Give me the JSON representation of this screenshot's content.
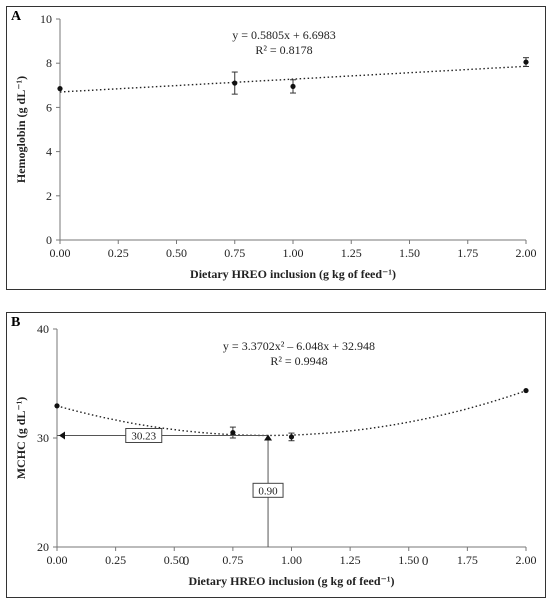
{
  "chart_data": [
    {
      "panel": "A",
      "type": "scatter",
      "equation": "y = 0.5805x + 6.6983",
      "r2": "R² = 0.8178",
      "xlabel": "Dietary HREO inclusion (g kg of feed⁻¹)",
      "ylabel": "Hemoglobin (g dL⁻¹)",
      "xlim": [
        0,
        2
      ],
      "ylim": [
        0,
        10
      ],
      "x_ticks": [
        "0.00",
        "0.25",
        "0.50",
        "0.75",
        "1.00",
        "1.25",
        "1.50",
        "1.75",
        "2.00"
      ],
      "y_ticks": [
        "0",
        "2",
        "4",
        "6",
        "8",
        "10"
      ],
      "points": [
        {
          "x": 0.0,
          "y": 6.85,
          "err": 0
        },
        {
          "x": 0.75,
          "y": 7.1,
          "err": 0.5
        },
        {
          "x": 1.0,
          "y": 6.95,
          "err": 0.3
        },
        {
          "x": 2.0,
          "y": 8.05,
          "err": 0.2
        }
      ],
      "trendline": {
        "kind": "linear",
        "a": 0.5805,
        "b": 6.6983
      }
    },
    {
      "panel": "B",
      "type": "scatter",
      "equation": "y = 3.3702x² – 6.048x + 32.948",
      "r2": "R² = 0.9948",
      "xlabel": "Dietary HREO inclusion (g kg of feed⁻¹)",
      "ylabel": "MCHC (g dL⁻¹)",
      "xlim": [
        0,
        2
      ],
      "ylim": [
        20,
        40
      ],
      "x_ticks": [
        "0.00",
        "0.25",
        "0.50",
        "0.75",
        "1.00",
        "1.25",
        "1.50",
        "1.75",
        "2.00"
      ],
      "y_ticks": [
        "20",
        "30",
        "40"
      ],
      "stray_zero": "0",
      "points": [
        {
          "x": 0.0,
          "y": 32.95,
          "err": 0
        },
        {
          "x": 0.75,
          "y": 30.5,
          "err": 0.5
        },
        {
          "x": 1.0,
          "y": 30.1,
          "err": 0.35
        },
        {
          "x": 2.0,
          "y": 34.35,
          "err": 0
        }
      ],
      "trendline": {
        "kind": "quadratic",
        "a": 3.3702,
        "b": -6.048,
        "c": 32.948
      },
      "optimum": {
        "x": 0.9,
        "y": 30.23,
        "x_label": "0.90",
        "y_label": "30.23"
      }
    }
  ]
}
